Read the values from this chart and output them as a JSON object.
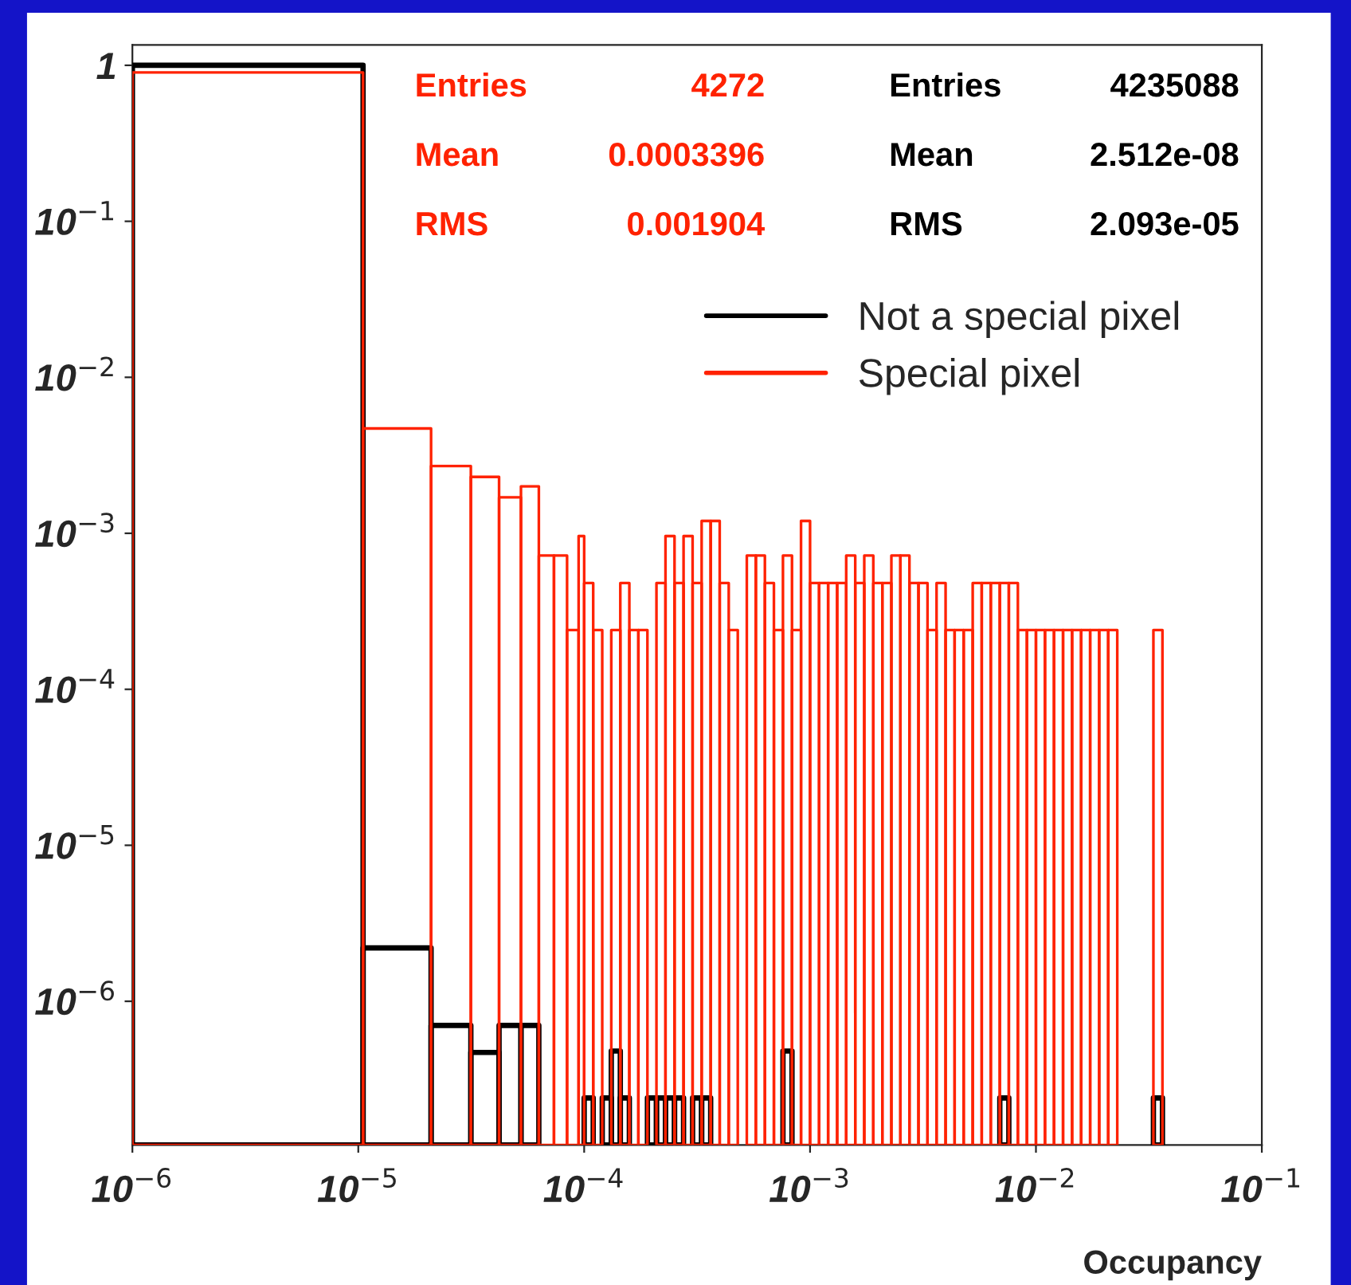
{
  "chart_data": {
    "type": "histogram",
    "xlabel": "Occupancy",
    "log": "xy",
    "grid": false,
    "legend": "top right",
    "xlim": [
      1e-06,
      0.1
    ],
    "ylim": [
      1.2e-07,
      1.35
    ],
    "xticks": [
      {
        "value": 1e-06,
        "label": "10$^{−6}$"
      },
      {
        "value": 1e-05,
        "label": "10$^{−5}$"
      },
      {
        "value": 0.0001,
        "label": "10$^{−4}$"
      },
      {
        "value": 0.001,
        "label": "10$^{−3}$"
      },
      {
        "value": 0.01,
        "label": "10$^{−2}$"
      },
      {
        "value": 0.1,
        "label": "10$^{−1}$"
      }
    ],
    "yticks": [
      {
        "value": 1e-06,
        "label": "10$^{−6}$"
      },
      {
        "value": 1e-05,
        "label": "10$^{−5}$"
      },
      {
        "value": 0.0001,
        "label": "10$^{−4}$"
      },
      {
        "value": 0.001,
        "label": "10$^{−3}$"
      },
      {
        "value": 0.01,
        "label": "10$^{−2}$"
      },
      {
        "value": 0.1,
        "label": "10$^{−1}$"
      },
      1
    ],
    "bins": [
      1e-06,
      1.05e-05,
      2.1e-05,
      3.15e-05,
      4.2e-05,
      5.25e-05,
      6.3e-05,
      7.35e-05,
      8.4e-05,
      9.45e-05,
      0.0001,
      0.000109648,
      0.000120226,
      0.000131826,
      0.000144544,
      0.000158489,
      0.00017378,
      0.000190546,
      0.00020893,
      0.000229087,
      0.000251189,
      0.00027542,
      0.000301995,
      0.000331131,
      0.000363078,
      0.000398107,
      0.000436516,
      0.00047863,
      0.000524807,
      0.00057544,
      0.000630957,
      0.000691831,
      0.000758578,
      0.000831764,
      0.000912011,
      0.001,
      0.00109648,
      0.00120226,
      0.00131826,
      0.00144544,
      0.00158489,
      0.0017378,
      0.00190546,
      0.0020893,
      0.00229087,
      0.00251189,
      0.0027542,
      0.00301995,
      0.00331131,
      0.00363078,
      0.00398107,
      0.00436516,
      0.0047863,
      0.00524807,
      0.0057544,
      0.00630957,
      0.00691831,
      0.00758578,
      0.00831764,
      0.00912011,
      0.01,
      0.0109648,
      0.0120226,
      0.0131826,
      0.0144544,
      0.0158489,
      0.017378,
      0.0190546,
      0.020893,
      0.0229087,
      0.0331131,
      0.0363078
    ],
    "series": [
      {
        "name": "Not a special pixel",
        "color": "#000000",
        "values": [
          1,
          2.2e-06,
          7e-07,
          4.7e-07,
          7e-07,
          7e-07,
          null,
          null,
          null,
          null,
          2.4e-07,
          null,
          2.4e-07,
          4.8e-07,
          2.4e-07,
          null,
          null,
          2.4e-07,
          2.4e-07,
          2.4e-07,
          2.4e-07,
          null,
          2.4e-07,
          2.4e-07,
          null,
          null,
          null,
          null,
          null,
          null,
          null,
          null,
          4.8e-07,
          null,
          null,
          null,
          null,
          null,
          null,
          null,
          null,
          null,
          null,
          null,
          null,
          null,
          null,
          null,
          null,
          null,
          null,
          null,
          null,
          null,
          null,
          null,
          2.4e-07,
          null,
          null,
          null,
          null,
          null,
          null,
          null,
          null,
          null,
          null,
          null,
          null,
          null,
          2.4e-07
        ]
      },
      {
        "name": "Special pixel",
        "color": "#ff2200",
        "values": [
          0.9,
          0.0047,
          0.0027,
          0.0023,
          0.0017,
          0.002,
          0.00072,
          0.00072,
          0.00024,
          0.00096,
          0.00048,
          0.00024,
          null,
          0.00024,
          0.00048,
          0.00024,
          0.00024,
          null,
          0.00048,
          0.00096,
          0.00048,
          0.00096,
          0.00048,
          0.0012,
          0.0012,
          0.00048,
          0.00024,
          null,
          0.00072,
          0.00072,
          0.00048,
          0.00024,
          0.00072,
          0.00024,
          0.0012,
          0.00048,
          0.00048,
          0.00048,
          0.00048,
          0.00072,
          0.00048,
          0.00072,
          0.00048,
          0.00048,
          0.00072,
          0.00072,
          0.00048,
          0.00048,
          0.00024,
          0.00048,
          0.00024,
          0.00024,
          0.00024,
          0.00048,
          0.00048,
          0.00048,
          0.00048,
          0.00048,
          0.00024,
          0.00024,
          0.00024,
          0.00024,
          0.00024,
          0.00024,
          0.00024,
          0.00024,
          0.00024,
          0.00024,
          0.00024,
          null,
          0.00024
        ]
      }
    ],
    "annotations": [
      "Entries",
      "4272",
      "Mean",
      "0.0003396",
      "RMS",
      "0.001904",
      "Entries",
      "4235088",
      "Mean",
      "2.512e-08",
      "RMS",
      "2.093e-05"
    ]
  }
}
